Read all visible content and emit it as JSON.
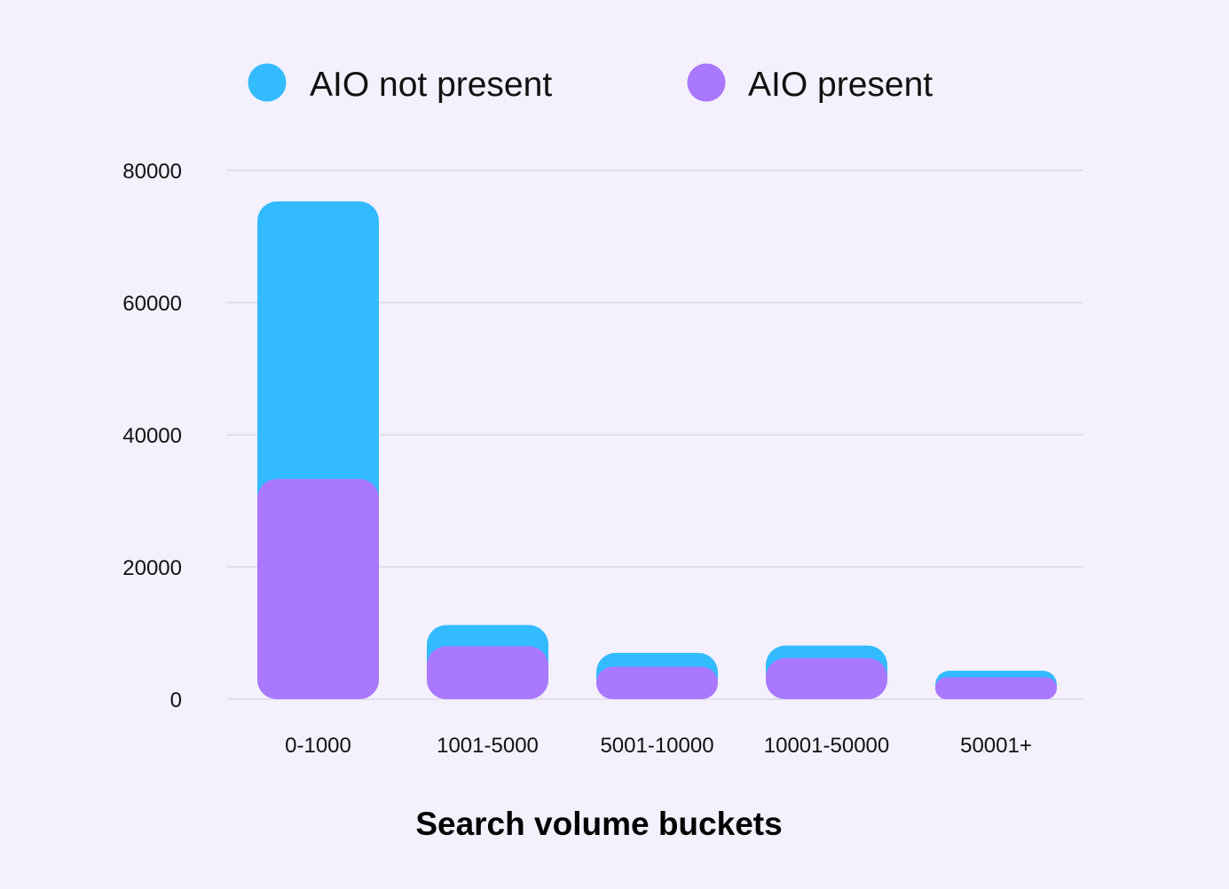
{
  "chart_data": {
    "type": "bar",
    "mode": "overlapping",
    "title": "",
    "xlabel": "Search volume buckets",
    "ylabel": "",
    "categories": [
      "0-1000",
      "1001-5000",
      "5001-10000",
      "10001-50000",
      "50001+"
    ],
    "series": [
      {
        "name": "AIO not present",
        "color": "#33bbff",
        "values": [
          75300,
          11200,
          7000,
          8100,
          4300
        ]
      },
      {
        "name": "AIO present",
        "color": "#aa77ff",
        "values": [
          33300,
          8000,
          4900,
          6200,
          3300
        ]
      }
    ],
    "ylim": [
      0,
      80000
    ],
    "yticks": [
      0,
      20000,
      40000,
      60000,
      80000
    ],
    "ytick_labels": [
      "0",
      "20000",
      "40000",
      "60000",
      "80000"
    ],
    "grid": true,
    "legend_position": "top"
  }
}
